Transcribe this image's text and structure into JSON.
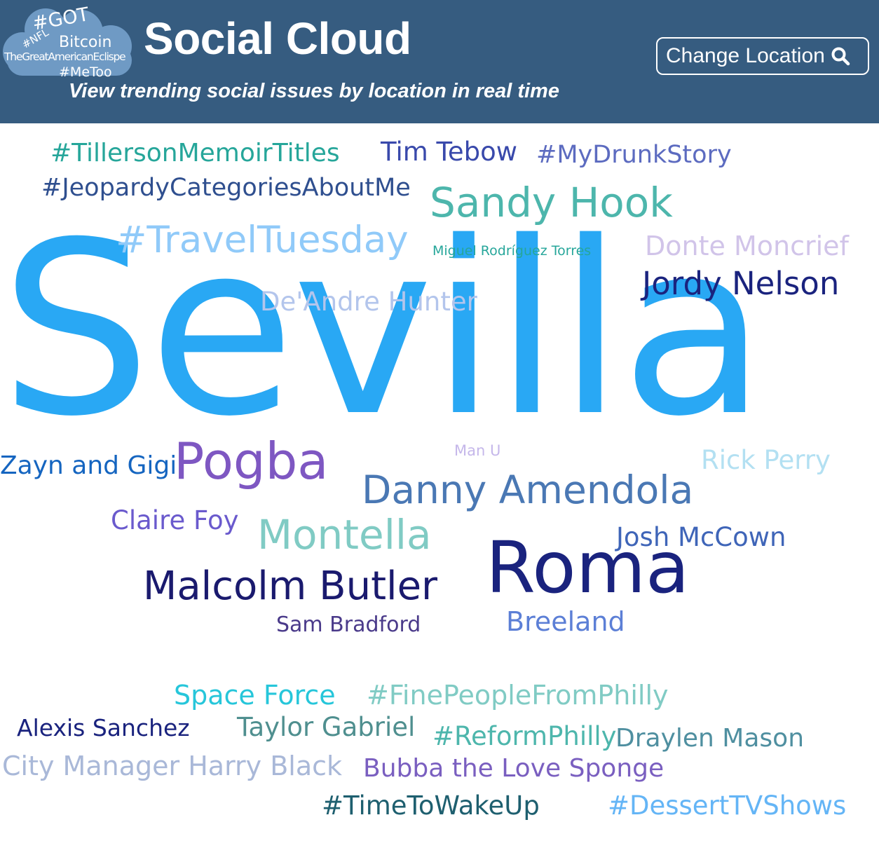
{
  "header": {
    "title": "Social Cloud",
    "subtitle": "View trending social issues by location in real time",
    "change_location_label": "Change Location",
    "background": "#365c80",
    "logo": {
      "words": [
        "#GOT",
        "#NFL",
        "Bitcoin",
        "TheGreatAmericanEclispe",
        "#MeToo"
      ],
      "cloud_color": "#6f9ac4"
    }
  },
  "cloud": {
    "words": [
      {
        "text": "#TillersonMemoirTitles",
        "color": "#26a69a"
      },
      {
        "text": "Tim Tebow",
        "color": "#3949ab"
      },
      {
        "text": "#MyDrunkStory",
        "color": "#5c6bc0"
      },
      {
        "text": "#JeopardyCategoriesAboutMe",
        "color": "#2f4f8f"
      },
      {
        "text": "Sandy Hook",
        "color": "#4db6ac"
      },
      {
        "text": "#TravelTuesday",
        "color": "#90caf9"
      },
      {
        "text": "Sevilla",
        "color": "#29a8f4"
      },
      {
        "text": "Miguel Rodríguez Torres",
        "color": "#26a69a"
      },
      {
        "text": "Donte Moncrief",
        "color": "#d1c4e9"
      },
      {
        "text": "Jordy Nelson",
        "color": "#1a237e"
      },
      {
        "text": "De'Andre Hunter",
        "color": "#b3c5ec"
      },
      {
        "text": "Zayn and Gigi",
        "color": "#1565c0"
      },
      {
        "text": "Pogba",
        "color": "#7e57c2"
      },
      {
        "text": "Man U",
        "color": "#c5b7ea"
      },
      {
        "text": "Rick Perry",
        "color": "#b3e0f2"
      },
      {
        "text": "Danny Amendola",
        "color": "#4a78b4"
      },
      {
        "text": "Claire Foy",
        "color": "#6a5acd"
      },
      {
        "text": "Montella",
        "color": "#80cbc4"
      },
      {
        "text": "Josh McCown",
        "color": "#3f65b8"
      },
      {
        "text": "Roma",
        "color": "#1a237e"
      },
      {
        "text": "Malcolm Butler",
        "color": "#1a1a6e"
      },
      {
        "text": "Sam Bradford",
        "color": "#4a3a8a"
      },
      {
        "text": "Breeland",
        "color": "#5c7fd6"
      },
      {
        "text": "Space Force",
        "color": "#26c6da"
      },
      {
        "text": "#FinePeopleFromPhilly",
        "color": "#80cbc4"
      },
      {
        "text": "Alexis Sanchez",
        "color": "#1a237e"
      },
      {
        "text": "Taylor Gabriel",
        "color": "#4f8f8f"
      },
      {
        "text": "#ReformPhilly",
        "color": "#4db6ac"
      },
      {
        "text": "Draylen Mason",
        "color": "#4f8fa0"
      },
      {
        "text": "City Manager Harry Black",
        "color": "#a9b8d8"
      },
      {
        "text": "Bubba the Love Sponge",
        "color": "#7a5fc0"
      },
      {
        "text": "#TimeToWakeUp",
        "color": "#1e5f6f"
      },
      {
        "text": "#DessertTVShows",
        "color": "#64b5f6"
      }
    ]
  }
}
